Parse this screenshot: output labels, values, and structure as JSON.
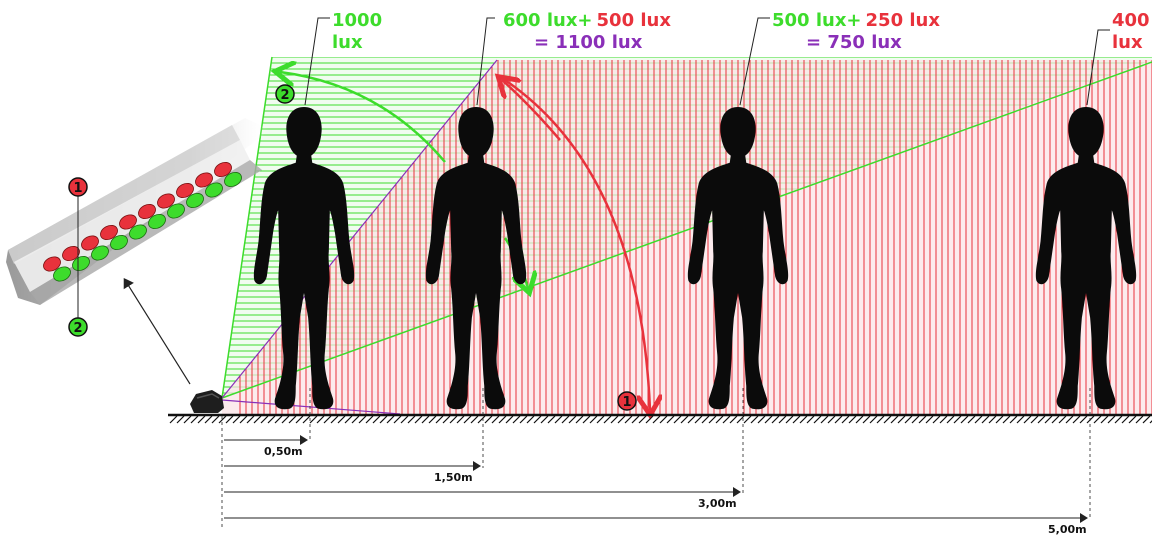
{
  "colors": {
    "green": "#3ddc2c",
    "red": "#e8323c",
    "purple": "#8a2fb8",
    "silhouette": "#0b0b0b",
    "ground": "#111111"
  },
  "icons": {
    "lamp": "led-lamp-icon",
    "person": "person-silhouette-icon",
    "badge": "numbered-circle-icon"
  },
  "badges": {
    "one": "1",
    "two": "2"
  },
  "labels": {
    "p1": {
      "green": "1000",
      "green2": "lux"
    },
    "p2": {
      "green": "600 lux+",
      "red": "500 lux",
      "total": "= 1100 lux"
    },
    "p3": {
      "green": "500 lux+",
      "red": "250 lux",
      "total": "= 750 lux"
    },
    "p4": {
      "red": "400",
      "red2": "lux"
    }
  },
  "distances": {
    "d1": "0,50m",
    "d2": "1,50m",
    "d3": "3,00m",
    "d4": "5,00m"
  }
}
